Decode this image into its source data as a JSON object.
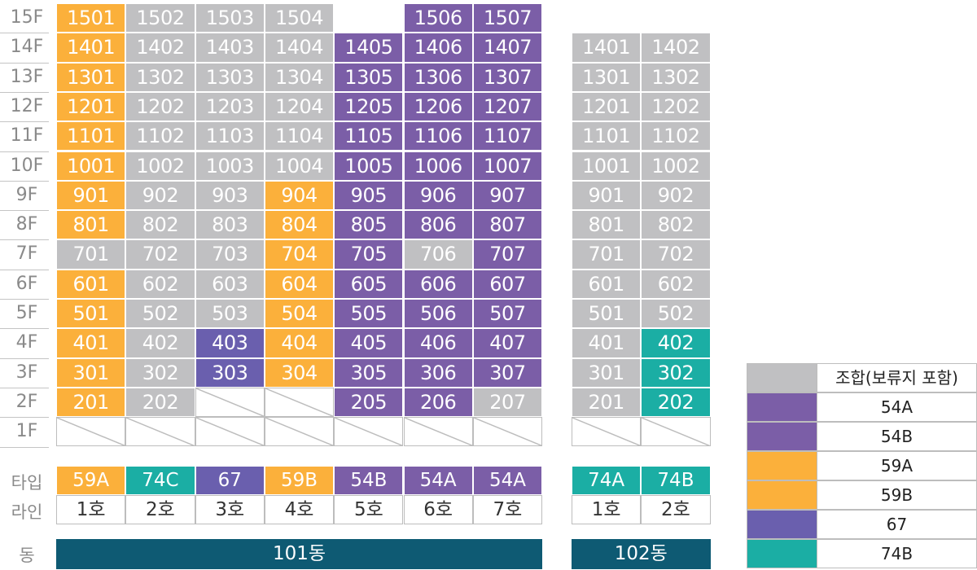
{
  "floors": [
    "15F",
    "14F",
    "13F",
    "12F",
    "11F",
    "10F",
    "9F",
    "8F",
    "7F",
    "6F",
    "5F",
    "4F",
    "3F",
    "2F",
    "1F"
  ],
  "colors": {
    "gray": "#c0c0c2",
    "orange": "#fbb03b",
    "purple": "#7b5ea7",
    "indigo": "#6a5fae",
    "teal": "#1baea4",
    "dong": "#0e5a73"
  },
  "b101_grid": [
    [
      [
        "1501",
        "orange"
      ],
      [
        "1502",
        "gray"
      ],
      [
        "1503",
        "gray"
      ],
      [
        "1504",
        "gray"
      ],
      [
        "",
        ""
      ],
      [
        "1506",
        "purple"
      ],
      [
        "1507",
        "purple"
      ]
    ],
    [
      [
        "1401",
        "orange"
      ],
      [
        "1402",
        "gray"
      ],
      [
        "1403",
        "gray"
      ],
      [
        "1404",
        "gray"
      ],
      [
        "1405",
        "purple"
      ],
      [
        "1406",
        "purple"
      ],
      [
        "1407",
        "purple"
      ]
    ],
    [
      [
        "1301",
        "orange"
      ],
      [
        "1302",
        "gray"
      ],
      [
        "1303",
        "gray"
      ],
      [
        "1304",
        "gray"
      ],
      [
        "1305",
        "purple"
      ],
      [
        "1306",
        "purple"
      ],
      [
        "1307",
        "purple"
      ]
    ],
    [
      [
        "1201",
        "orange"
      ],
      [
        "1202",
        "gray"
      ],
      [
        "1203",
        "gray"
      ],
      [
        "1204",
        "gray"
      ],
      [
        "1205",
        "purple"
      ],
      [
        "1206",
        "purple"
      ],
      [
        "1207",
        "purple"
      ]
    ],
    [
      [
        "1101",
        "orange"
      ],
      [
        "1102",
        "gray"
      ],
      [
        "1103",
        "gray"
      ],
      [
        "1104",
        "gray"
      ],
      [
        "1105",
        "purple"
      ],
      [
        "1106",
        "purple"
      ],
      [
        "1107",
        "purple"
      ]
    ],
    [
      [
        "1001",
        "orange"
      ],
      [
        "1002",
        "gray"
      ],
      [
        "1003",
        "gray"
      ],
      [
        "1004",
        "gray"
      ],
      [
        "1005",
        "purple"
      ],
      [
        "1006",
        "purple"
      ],
      [
        "1007",
        "purple"
      ]
    ],
    [
      [
        "901",
        "orange"
      ],
      [
        "902",
        "gray"
      ],
      [
        "903",
        "gray"
      ],
      [
        "904",
        "orange"
      ],
      [
        "905",
        "purple"
      ],
      [
        "906",
        "purple"
      ],
      [
        "907",
        "purple"
      ]
    ],
    [
      [
        "801",
        "orange"
      ],
      [
        "802",
        "gray"
      ],
      [
        "803",
        "gray"
      ],
      [
        "804",
        "orange"
      ],
      [
        "805",
        "purple"
      ],
      [
        "806",
        "purple"
      ],
      [
        "807",
        "purple"
      ]
    ],
    [
      [
        "701",
        "gray"
      ],
      [
        "702",
        "gray"
      ],
      [
        "703",
        "gray"
      ],
      [
        "704",
        "orange"
      ],
      [
        "705",
        "purple"
      ],
      [
        "706",
        "gray"
      ],
      [
        "707",
        "purple"
      ]
    ],
    [
      [
        "601",
        "orange"
      ],
      [
        "602",
        "gray"
      ],
      [
        "603",
        "gray"
      ],
      [
        "604",
        "orange"
      ],
      [
        "605",
        "purple"
      ],
      [
        "606",
        "purple"
      ],
      [
        "607",
        "purple"
      ]
    ],
    [
      [
        "501",
        "orange"
      ],
      [
        "502",
        "gray"
      ],
      [
        "503",
        "gray"
      ],
      [
        "504",
        "orange"
      ],
      [
        "505",
        "purple"
      ],
      [
        "506",
        "purple"
      ],
      [
        "507",
        "purple"
      ]
    ],
    [
      [
        "401",
        "orange"
      ],
      [
        "402",
        "gray"
      ],
      [
        "403",
        "indigo"
      ],
      [
        "404",
        "orange"
      ],
      [
        "405",
        "purple"
      ],
      [
        "406",
        "purple"
      ],
      [
        "407",
        "purple"
      ]
    ],
    [
      [
        "301",
        "orange"
      ],
      [
        "302",
        "gray"
      ],
      [
        "303",
        "indigo"
      ],
      [
        "304",
        "orange"
      ],
      [
        "305",
        "purple"
      ],
      [
        "306",
        "purple"
      ],
      [
        "307",
        "purple"
      ]
    ],
    [
      [
        "201",
        "orange"
      ],
      [
        "202",
        "gray"
      ],
      [
        "",
        "empty"
      ],
      [
        "",
        "empty"
      ],
      [
        "205",
        "purple"
      ],
      [
        "206",
        "purple"
      ],
      [
        "207",
        "gray"
      ]
    ],
    [
      [
        "",
        "empty"
      ],
      [
        "",
        "empty"
      ],
      [
        "",
        "empty"
      ],
      [
        "",
        "empty"
      ],
      [
        "",
        "empty"
      ],
      [
        "",
        "empty"
      ],
      [
        "",
        "empty"
      ]
    ]
  ],
  "b102_grid": [
    [
      [
        "",
        ""
      ],
      [
        "",
        ""
      ]
    ],
    [
      [
        "1401",
        "gray"
      ],
      [
        "1402",
        "gray"
      ]
    ],
    [
      [
        "1301",
        "gray"
      ],
      [
        "1302",
        "gray"
      ]
    ],
    [
      [
        "1201",
        "gray"
      ],
      [
        "1202",
        "gray"
      ]
    ],
    [
      [
        "1101",
        "gray"
      ],
      [
        "1102",
        "gray"
      ]
    ],
    [
      [
        "1001",
        "gray"
      ],
      [
        "1002",
        "gray"
      ]
    ],
    [
      [
        "901",
        "gray"
      ],
      [
        "902",
        "gray"
      ]
    ],
    [
      [
        "801",
        "gray"
      ],
      [
        "802",
        "gray"
      ]
    ],
    [
      [
        "701",
        "gray"
      ],
      [
        "702",
        "gray"
      ]
    ],
    [
      [
        "601",
        "gray"
      ],
      [
        "602",
        "gray"
      ]
    ],
    [
      [
        "501",
        "gray"
      ],
      [
        "502",
        "gray"
      ]
    ],
    [
      [
        "401",
        "gray"
      ],
      [
        "402",
        "teal"
      ]
    ],
    [
      [
        "301",
        "gray"
      ],
      [
        "302",
        "teal"
      ]
    ],
    [
      [
        "201",
        "gray"
      ],
      [
        "202",
        "teal"
      ]
    ],
    [
      [
        "",
        "empty"
      ],
      [
        "",
        "empty"
      ]
    ]
  ],
  "labels": {
    "type": "타입",
    "line": "라인",
    "dong": "동"
  },
  "b101_types": [
    [
      "59A",
      "orange"
    ],
    [
      "74C",
      "teal"
    ],
    [
      "67",
      "indigo"
    ],
    [
      "59B",
      "orange"
    ],
    [
      "54B",
      "purple"
    ],
    [
      "54A",
      "purple"
    ],
    [
      "54A",
      "purple"
    ]
  ],
  "b101_lines": [
    "1호",
    "2호",
    "3호",
    "4호",
    "5호",
    "6호",
    "7호"
  ],
  "b102_types": [
    [
      "74A",
      "teal"
    ],
    [
      "74B",
      "teal"
    ]
  ],
  "b102_lines": [
    "1호",
    "2호"
  ],
  "dong_101": "101동",
  "dong_102": "102동",
  "legend": [
    [
      "조합(보류지 포함)",
      "gray"
    ],
    [
      "54A",
      "purple"
    ],
    [
      "54B",
      "purple"
    ],
    [
      "59A",
      "orange"
    ],
    [
      "59B",
      "orange"
    ],
    [
      "67",
      "indigo"
    ],
    [
      "74B",
      "teal"
    ]
  ]
}
